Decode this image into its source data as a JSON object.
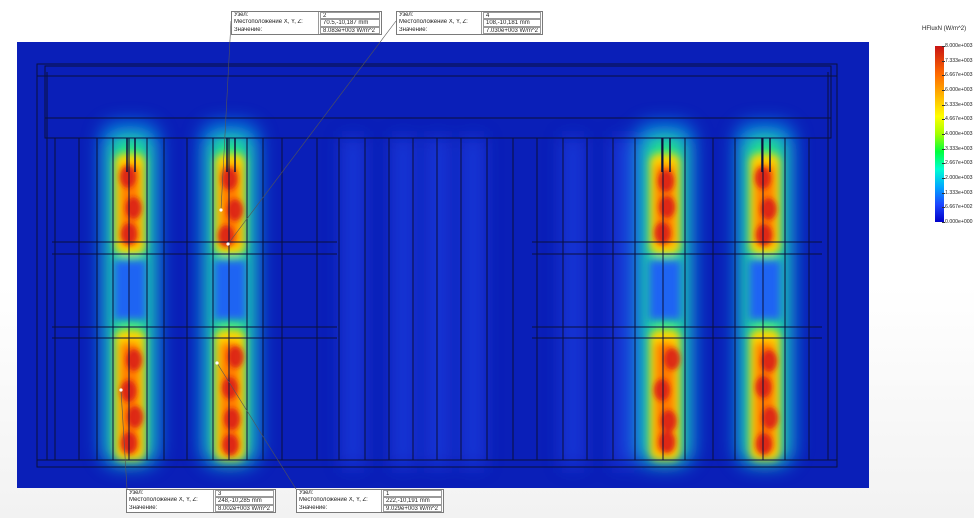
{
  "legend": {
    "title": "HFluxN (W/m^2)",
    "ticks": [
      "8.000e+003",
      "7.333e+003",
      "6.667e+003",
      "6.000e+003",
      "5.333e+003",
      "4.667e+003",
      "4.000e+003",
      "3.333e+003",
      "2.667e+003",
      "2.000e+003",
      "1.333e+003",
      "6.667e+002",
      "0.000e+000"
    ]
  },
  "probes": [
    {
      "node_label": "Узел:",
      "node": "2",
      "loc_label": "Местоположение X, Y, Z:",
      "loc": "70.5,-10,187 mm",
      "val_label": "Значение:",
      "val": "8.083e+003 W/m^2"
    },
    {
      "node_label": "Узел:",
      "node": "4",
      "loc_label": "Местоположение X, Y, Z:",
      "loc": "108,-10,181 mm",
      "val_label": "Значение:",
      "val": "7.030e+003 W/m^2"
    },
    {
      "node_label": "Узел:",
      "node": "3",
      "loc_label": "Местоположение X, Y, Z:",
      "loc": "248,-10,285 mm",
      "val_label": "Значение:",
      "val": "8.002e+003 W/m^2"
    },
    {
      "node_label": "Узел:",
      "node": "1",
      "loc_label": "Местоположение X, Y, Z:",
      "loc": "222,-10,191 mm",
      "val_label": "Значение:",
      "val": "9.029e+003 W/m^2"
    }
  ],
  "colors": {
    "background": "#0a1fb8",
    "hot": "#c81414",
    "frame": "#0a0f3c"
  }
}
